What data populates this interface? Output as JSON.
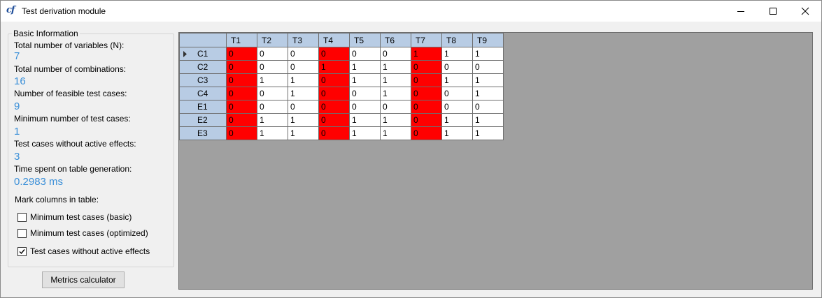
{
  "window": {
    "title": "Test derivation module",
    "icon": "cf-app-icon"
  },
  "basic_info": {
    "group_title": "Basic Information",
    "items": [
      {
        "label": "Total number of variables (N):",
        "value": "7"
      },
      {
        "label": "Total number of combinations:",
        "value": "16"
      },
      {
        "label": "Number of feasible test cases:",
        "value": "9"
      },
      {
        "label": "Minimum number of test cases:",
        "value": "1"
      },
      {
        "label": "Test cases without active effects:",
        "value": "3"
      },
      {
        "label": "Time spent on table generation:",
        "value": "0.2983 ms"
      }
    ],
    "value_color": "#3a8fd8"
  },
  "mark_columns": {
    "label": "Mark columns in table:",
    "options": [
      {
        "label": "Minimum test cases (basic)",
        "checked": false
      },
      {
        "label": "Minimum test cases (optimized)",
        "checked": false
      },
      {
        "label": "Test cases without active effects",
        "checked": true
      }
    ]
  },
  "metrics_button": "Metrics calculator",
  "table": {
    "columns": [
      "T1",
      "T2",
      "T3",
      "T4",
      "T5",
      "T6",
      "T7",
      "T8",
      "T9"
    ],
    "highlighted_columns": [
      "T1",
      "T4",
      "T7"
    ],
    "highlight_color": "#ff0000",
    "header_color": "#b8cce4",
    "rows": [
      {
        "name": "C1",
        "values": [
          "0",
          "0",
          "0",
          "0",
          "0",
          "0",
          "1",
          "1",
          "1"
        ]
      },
      {
        "name": "C2",
        "values": [
          "0",
          "0",
          "0",
          "1",
          "1",
          "1",
          "0",
          "0",
          "0"
        ]
      },
      {
        "name": "C3",
        "values": [
          "0",
          "1",
          "1",
          "0",
          "1",
          "1",
          "0",
          "1",
          "1"
        ]
      },
      {
        "name": "C4",
        "values": [
          "0",
          "0",
          "1",
          "0",
          "0",
          "1",
          "0",
          "0",
          "1"
        ]
      },
      {
        "name": "E1",
        "values": [
          "0",
          "0",
          "0",
          "0",
          "0",
          "0",
          "0",
          "0",
          "0"
        ]
      },
      {
        "name": "E2",
        "values": [
          "0",
          "1",
          "1",
          "0",
          "1",
          "1",
          "0",
          "1",
          "1"
        ]
      },
      {
        "name": "E3",
        "values": [
          "0",
          "1",
          "1",
          "0",
          "1",
          "1",
          "0",
          "1",
          "1"
        ]
      }
    ]
  }
}
